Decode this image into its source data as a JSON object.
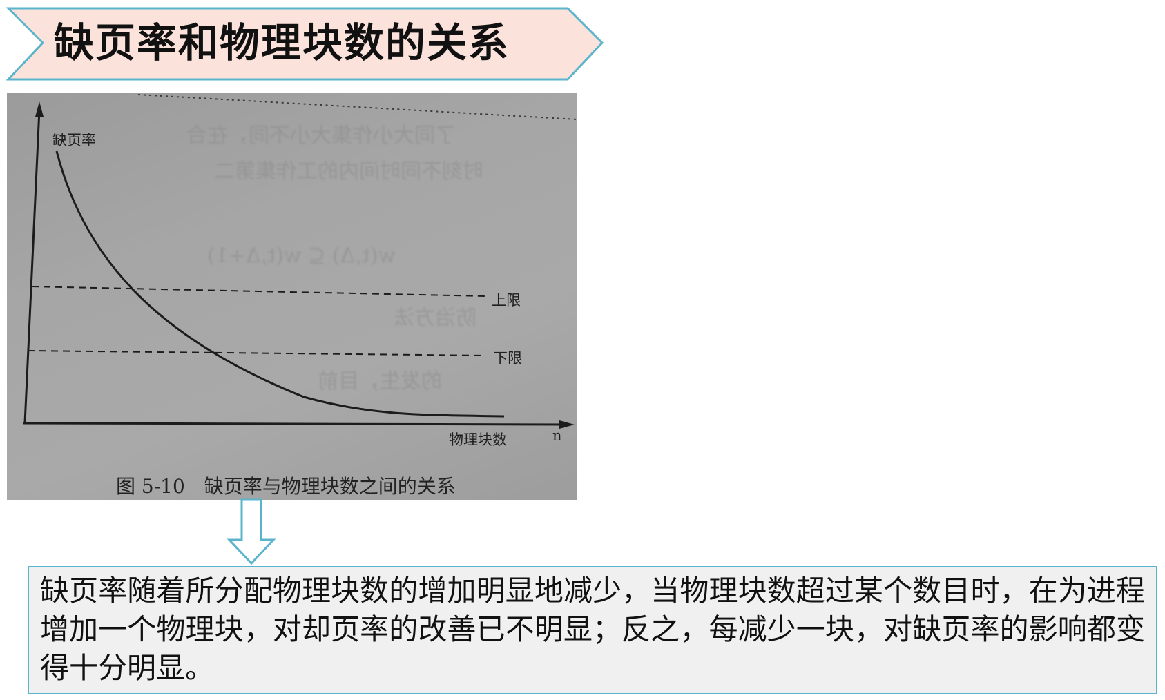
{
  "slide": {
    "title": "缺页率和物理块数的关系",
    "banner_fill": "#fbe3dc",
    "banner_border": "#5ab4cc"
  },
  "figure": {
    "y_axis_label": "缺页率",
    "x_axis_label": "物理块数",
    "x_axis_symbol": "n",
    "upper_limit_label": "上限",
    "lower_limit_label": "下限",
    "caption": "图 5-10　缺页率与物理块数之间的关系",
    "curve": "decreasing"
  },
  "arrow": {
    "icon": "down-arrow-icon",
    "fill": "#ffffff",
    "stroke": "#5ab4cc"
  },
  "explanation": {
    "text": "缺页率随着所分配物理块数的增加明显地减少，当物理块数超过某个数目时，在为进程增加一个物理块，对却页率的改善已不明显；反之，每减少一块，对缺页率的影响都变得十分明显。",
    "fill": "#f0f0f0",
    "border": "#5ab4cc"
  }
}
